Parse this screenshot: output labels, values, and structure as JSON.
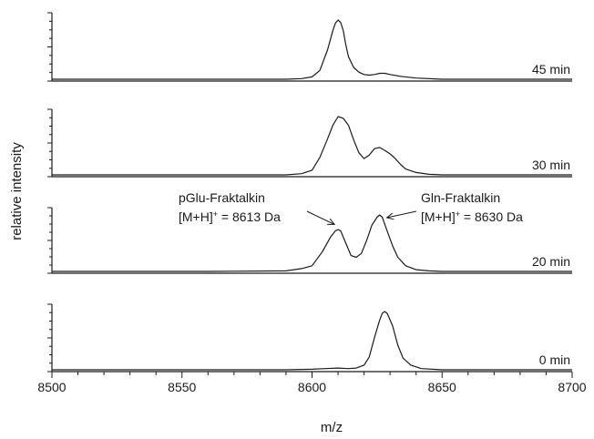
{
  "chart_data": {
    "type": "line",
    "xlabel": "m/z",
    "ylabel": "relative intensity",
    "xlim": [
      8500,
      8700
    ],
    "x_ticks": [
      8500,
      8550,
      8600,
      8650,
      8700
    ],
    "x_tick_labels": [
      "8500",
      "8550",
      "8600",
      "8650",
      "8700"
    ],
    "ylim": [
      0,
      1
    ],
    "panels": [
      {
        "name": "45 min",
        "label": "45 min",
        "x": [
          8500,
          8560,
          8590,
          8596,
          8600,
          8603,
          8606,
          8608,
          8609,
          8610,
          8611,
          8612,
          8613,
          8614,
          8616,
          8618,
          8620,
          8622,
          8624,
          8626,
          8628,
          8630,
          8634,
          8640,
          8650,
          8700
        ],
        "values": [
          0.0,
          0.0,
          0.0,
          0.01,
          0.04,
          0.15,
          0.5,
          0.82,
          0.95,
          1.0,
          0.96,
          0.82,
          0.58,
          0.38,
          0.2,
          0.12,
          0.08,
          0.07,
          0.08,
          0.1,
          0.1,
          0.08,
          0.05,
          0.02,
          0.0,
          0.0
        ]
      },
      {
        "name": "30 min",
        "label": "30 min",
        "x": [
          8500,
          8560,
          8590,
          8596,
          8600,
          8603,
          8606,
          8608,
          8610,
          8612,
          8614,
          8616,
          8618,
          8620,
          8622,
          8624,
          8626,
          8628,
          8630,
          8632,
          8634,
          8636,
          8640,
          8645,
          8650,
          8700
        ],
        "values": [
          0.0,
          0.0,
          0.0,
          0.02,
          0.08,
          0.3,
          0.62,
          0.85,
          1.0,
          0.97,
          0.85,
          0.6,
          0.38,
          0.28,
          0.34,
          0.45,
          0.47,
          0.42,
          0.36,
          0.28,
          0.18,
          0.1,
          0.04,
          0.01,
          0.0,
          0.0
        ]
      },
      {
        "name": "20 min",
        "label": "20 min",
        "x": [
          8500,
          8560,
          8590,
          8596,
          8600,
          8604,
          8607,
          8609,
          8610,
          8611,
          8613,
          8615,
          8617,
          8619,
          8621,
          8623,
          8625,
          8626,
          8627,
          8629,
          8631,
          8633,
          8636,
          8640,
          8645,
          8650,
          8700
        ],
        "values": [
          0.0,
          0.0,
          0.01,
          0.05,
          0.1,
          0.35,
          0.6,
          0.72,
          0.74,
          0.72,
          0.5,
          0.28,
          0.25,
          0.32,
          0.55,
          0.82,
          0.96,
          1.0,
          0.96,
          0.7,
          0.45,
          0.25,
          0.1,
          0.03,
          0.01,
          0.0,
          0.0
        ]
      },
      {
        "name": "0 min",
        "label": "0 min",
        "x": [
          8500,
          8590,
          8600,
          8605,
          8610,
          8614,
          8617,
          8620,
          8622,
          8624,
          8626,
          8627,
          8628,
          8629,
          8631,
          8633,
          8635,
          8638,
          8642,
          8650,
          8700
        ],
        "values": [
          0.0,
          0.0,
          0.01,
          0.02,
          0.03,
          0.02,
          0.03,
          0.08,
          0.22,
          0.55,
          0.85,
          0.97,
          1.0,
          0.96,
          0.75,
          0.42,
          0.2,
          0.08,
          0.02,
          0.0,
          0.0
        ]
      }
    ],
    "annotations": [
      {
        "name": "pglu",
        "line1": "pGlu-Fraktalkin",
        "line2_pre": "[M+H]",
        "line2_sup": "+",
        "line2_post": " = 8613 Da",
        "panel": 2,
        "arrow_tip": {
          "x": 8610,
          "y": 0.8
        }
      },
      {
        "name": "gln",
        "line1": "Gln-Fraktalkin",
        "line2_pre": "[M+H]",
        "line2_sup": "+",
        "line2_post": " = 8630 Da",
        "panel": 2,
        "arrow_tip": {
          "x": 8627,
          "y": 0.92
        }
      }
    ],
    "grid": false,
    "legend": "none"
  }
}
